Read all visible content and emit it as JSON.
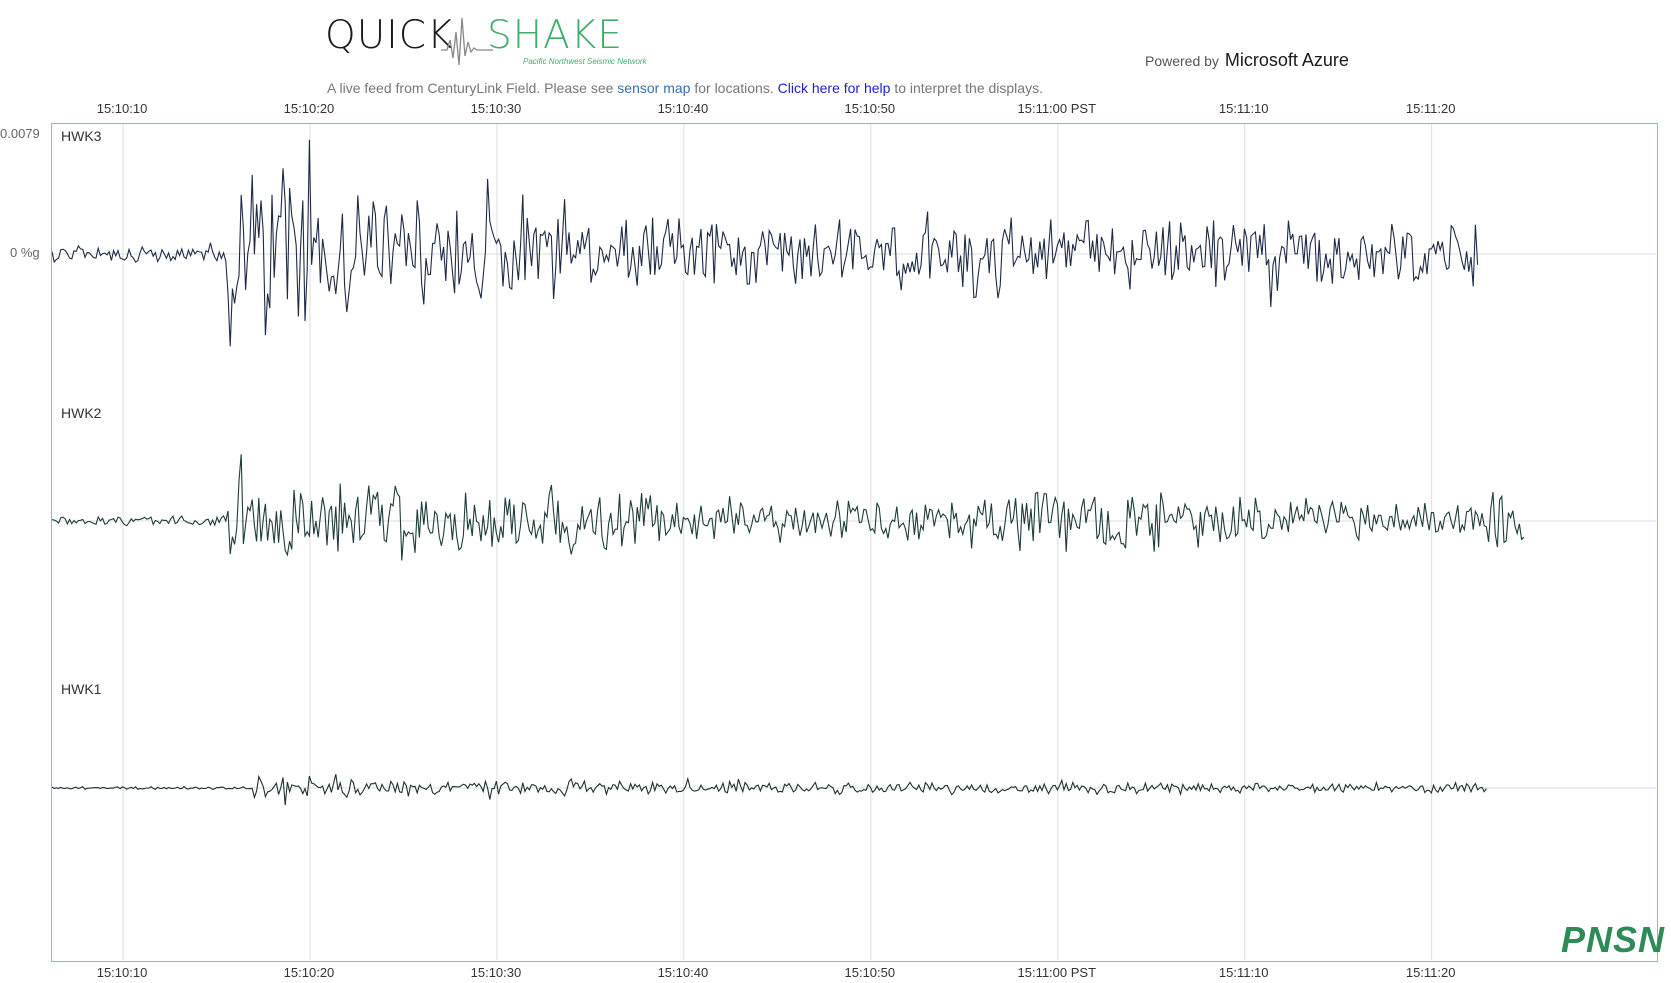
{
  "header": {
    "logo_quick": "QUICK",
    "logo_shake": "SHAKE",
    "logo_subtitle": "Pacific Northwest Seismic Network",
    "powered_prefix": "Powered by",
    "powered_brand": "Microsoft Azure",
    "description_before": "A live feed from CenturyLink Field. Please see ",
    "sensor_map_link": "sensor map",
    "description_middle": " for locations. ",
    "help_link": "Click here for help",
    "description_after": " to interpret the displays."
  },
  "footer": {
    "watermark": "PNSN"
  },
  "colors": {
    "frame": "#7ccc95",
    "grid": "#dddddd",
    "trace_hwk3": "#1e2a44",
    "trace_hwk2": "#1e3a3a",
    "trace_hwk1": "#1e3030",
    "accent_green": "#3fae6a",
    "link_blue": "#2222cc"
  },
  "chart_data": {
    "type": "line",
    "x_ticks": [
      "15:10:10",
      "15:10:20",
      "15:10:30",
      "15:10:40",
      "15:10:50",
      "15:11:00 PST",
      "15:11:10",
      "15:11:20"
    ],
    "x_tick_seconds": [
      10,
      20,
      30,
      40,
      50,
      60,
      70,
      80
    ],
    "xlim_seconds_after_15_10": [
      6.2,
      92.0
    ],
    "y_ticks": [
      "0.0079",
      "0 %g"
    ],
    "y_tick_values": [
      0.0079,
      0
    ],
    "grid": true,
    "series": [
      {
        "name": "HWK3",
        "start_s": 6.2,
        "end_s": 82.5,
        "envelope_peak": 0.0079,
        "onset_s": 15.5
      },
      {
        "name": "HWK2",
        "start_s": 6.2,
        "end_s": 85.0,
        "envelope_peak": 0.0045,
        "onset_s": 15.5
      },
      {
        "name": "HWK1",
        "start_s": 6.2,
        "end_s": 83.0,
        "envelope_peak": 0.0012,
        "onset_s": 17.0
      }
    ]
  }
}
